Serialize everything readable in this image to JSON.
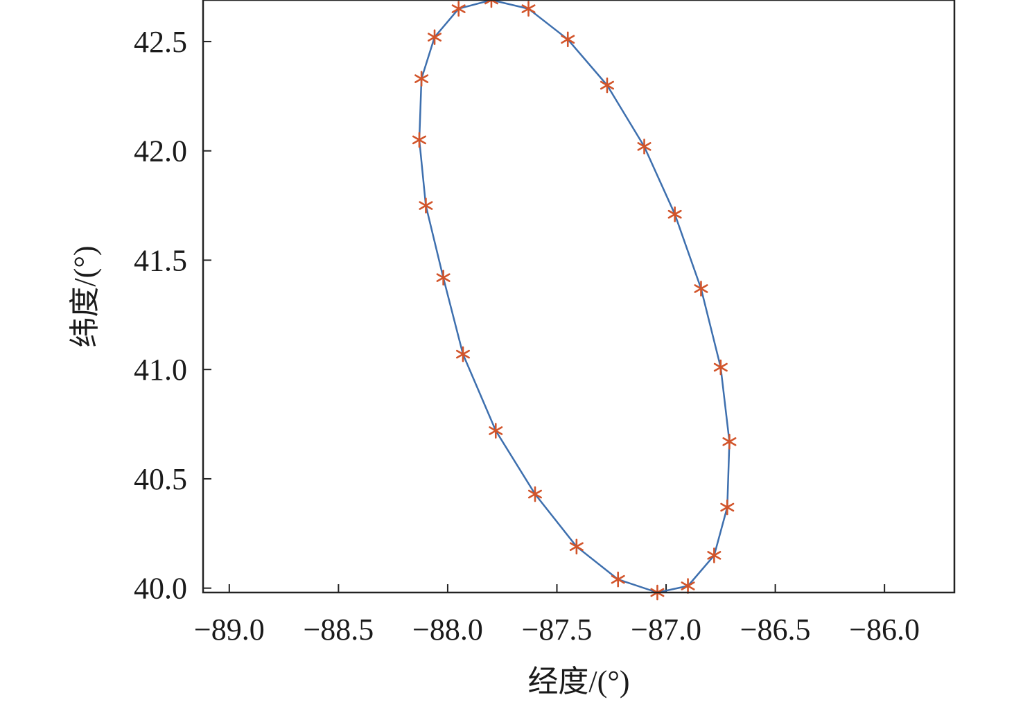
{
  "chart_data": {
    "type": "scatter",
    "xlabel": "经度/(°)",
    "ylabel": "纬度/(°)",
    "xlim": [
      -89.12,
      -85.68
    ],
    "ylim": [
      39.98,
      42.69
    ],
    "xticks": [
      -89.0,
      -88.5,
      -88.0,
      -87.5,
      -87.0,
      -86.5,
      -86.0
    ],
    "xtick_labels": [
      "−89.0",
      "−88.5",
      "−88.0",
      "−87.5",
      "−87.0",
      "−86.5",
      "−86.0"
    ],
    "yticks": [
      40.0,
      40.5,
      41.0,
      41.5,
      42.0,
      42.5
    ],
    "ytick_labels": [
      "40.0",
      "40.5",
      "41.0",
      "41.5",
      "42.0",
      "42.5"
    ],
    "grid": false,
    "series": [
      {
        "style": "line",
        "color": "#3d6fae",
        "closed": true,
        "points": [
          [
            -87.8,
            42.69
          ],
          [
            -87.63,
            42.65
          ],
          [
            -87.45,
            42.51
          ],
          [
            -87.27,
            42.3
          ],
          [
            -87.1,
            42.02
          ],
          [
            -86.96,
            41.71
          ],
          [
            -86.84,
            41.37
          ],
          [
            -86.75,
            41.01
          ],
          [
            -86.71,
            40.67
          ],
          [
            -86.72,
            40.37
          ],
          [
            -86.78,
            40.15
          ],
          [
            -86.9,
            40.01
          ],
          [
            -87.04,
            39.98
          ],
          [
            -87.22,
            40.04
          ],
          [
            -87.41,
            40.19
          ],
          [
            -87.6,
            40.43
          ],
          [
            -87.78,
            40.72
          ],
          [
            -87.93,
            41.07
          ],
          [
            -88.02,
            41.42
          ],
          [
            -88.1,
            41.75
          ],
          [
            -88.13,
            42.05
          ],
          [
            -88.12,
            42.33
          ],
          [
            -88.06,
            42.52
          ],
          [
            -87.95,
            42.65
          ]
        ]
      },
      {
        "style": "markers",
        "marker": "asterisk",
        "color": "#d2542a",
        "points": [
          [
            -87.8,
            42.69
          ],
          [
            -87.63,
            42.65
          ],
          [
            -87.45,
            42.51
          ],
          [
            -87.27,
            42.3
          ],
          [
            -87.1,
            42.02
          ],
          [
            -86.96,
            41.71
          ],
          [
            -86.84,
            41.37
          ],
          [
            -86.75,
            41.01
          ],
          [
            -86.71,
            40.67
          ],
          [
            -86.72,
            40.37
          ],
          [
            -86.78,
            40.15
          ],
          [
            -86.9,
            40.01
          ],
          [
            -87.04,
            39.98
          ],
          [
            -87.22,
            40.04
          ],
          [
            -87.41,
            40.19
          ],
          [
            -87.6,
            40.43
          ],
          [
            -87.78,
            40.72
          ],
          [
            -87.93,
            41.07
          ],
          [
            -88.02,
            41.42
          ],
          [
            -88.1,
            41.75
          ],
          [
            -88.13,
            42.05
          ],
          [
            -88.12,
            42.33
          ],
          [
            -88.06,
            42.52
          ],
          [
            -87.95,
            42.65
          ]
        ]
      }
    ]
  }
}
